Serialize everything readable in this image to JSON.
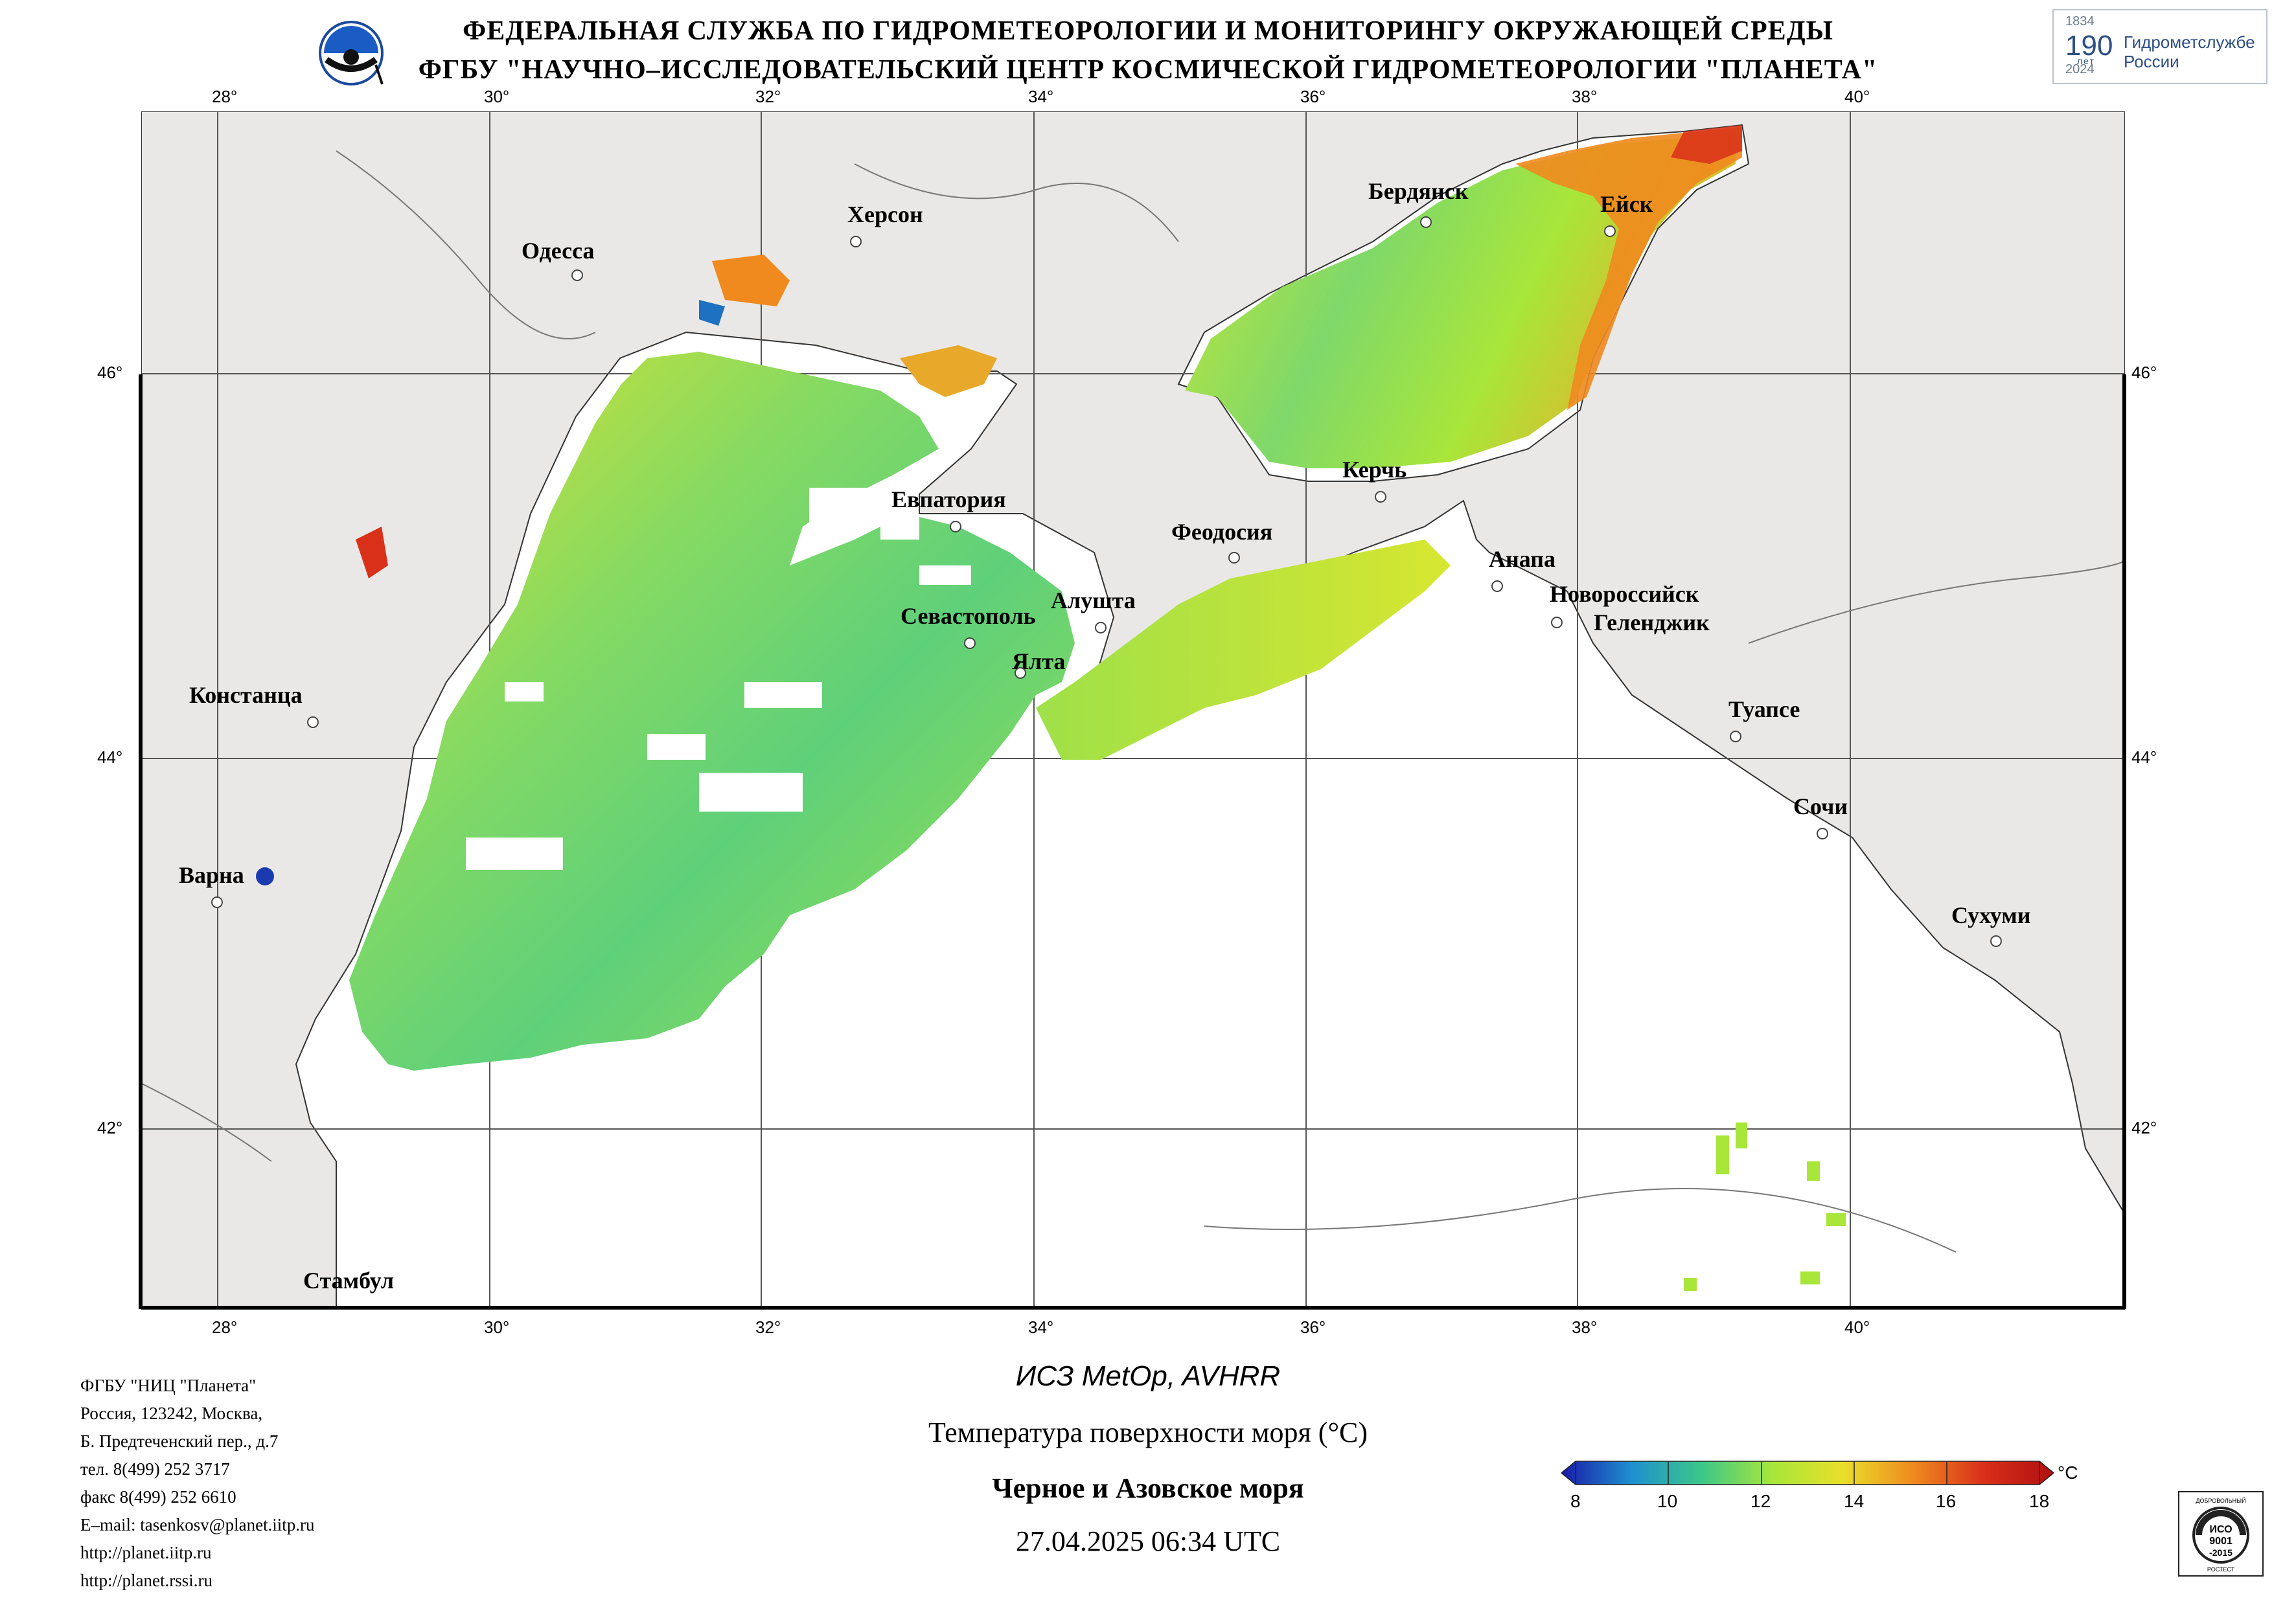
{
  "header": {
    "line1": "ФЕДЕРАЛЬНАЯ СЛУЖБА ПО ГИДРОМЕТЕОРОЛОГИИ И МОНИТОРИНГУ ОКРУЖАЮЩЕЙ СРЕДЫ",
    "line2": "ФГБУ \"НАУЧНО–ИССЛЕДОВАТЕЛЬСКИЙ ЦЕНТР КОСМИЧЕСКОЙ ГИДРОМЕТЕОРОЛОГИИ \"ПЛАНЕТА\"",
    "logo_right": {
      "year_start": "1834",
      "year_end": "2024",
      "number": "190",
      "years_word": "лет",
      "text_line1": "Гидрометслужбе",
      "text_line2": "России"
    }
  },
  "map": {
    "lon_labels": [
      "28°",
      "30°",
      "32°",
      "34°",
      "36°",
      "38°",
      "40°"
    ],
    "lat_labels": [
      "46°",
      "44°",
      "42°"
    ],
    "cities": {
      "odessa": "Одесса",
      "kherson": "Херсон",
      "berdyansk": "Бердянск",
      "yeysk": "Ейск",
      "kerch": "Керчь",
      "anapa": "Анапа",
      "evpatoria": "Евпатория",
      "feodosia": "Феодосия",
      "sevastopol": "Севастополь",
      "alushta": "Алушта",
      "yalta": "Ялта",
      "novorossiysk": "Новороссийск",
      "gelendzhik": "Геленджик",
      "tuapse": "Туапсе",
      "sochi": "Сочи",
      "sukhumi": "Сухуми",
      "constanta": "Констанца",
      "varna": "Варна",
      "istanbul": "Стамбул"
    },
    "colors": {
      "land": "#e9e8e6",
      "sea_no_data": "#ffffff",
      "sst_cool": "#3cc887",
      "sst_mid": "#a8e63a",
      "sst_warm": "#e8e02a",
      "sst_hot": "#f08a1e",
      "sst_max": "#d9301a"
    }
  },
  "footer": {
    "org": "ФГБУ \"НИЦ \"Планета\"",
    "addr1": "Россия, 123242, Москва,",
    "addr2": "Б. Предтеченский пер., д.7",
    "tel": "тел. 8(499) 252 3717",
    "fax": "факс 8(499) 252 6610",
    "email": "E–mail: tasenkosv@planet.iitp.ru",
    "web1": "http://planet.iitp.ru",
    "web2": "http://planet.rssi.ru"
  },
  "caption": {
    "satellite": "ИСЗ MetOp, AVHRR",
    "parameter": "Температура поверхности моря (°C)",
    "region": "Черное и Азовское моря",
    "datetime": "27.04.2025 06:34 UTC"
  },
  "colorbar": {
    "ticks": [
      "8",
      "10",
      "12",
      "14",
      "16",
      "18"
    ],
    "unit": "°C",
    "stops": [
      "#1a1aa8",
      "#1e90d0",
      "#3cc887",
      "#a8e63a",
      "#e8e02a",
      "#f08a1e",
      "#d9301a",
      "#b01010"
    ]
  },
  "iso_badge": {
    "line1": "ДОБРОВОЛЬНЫЙ",
    "line2": "ИСО",
    "line3": "9001",
    "line4": "-2015",
    "line5": "РОСТЕСТ"
  }
}
